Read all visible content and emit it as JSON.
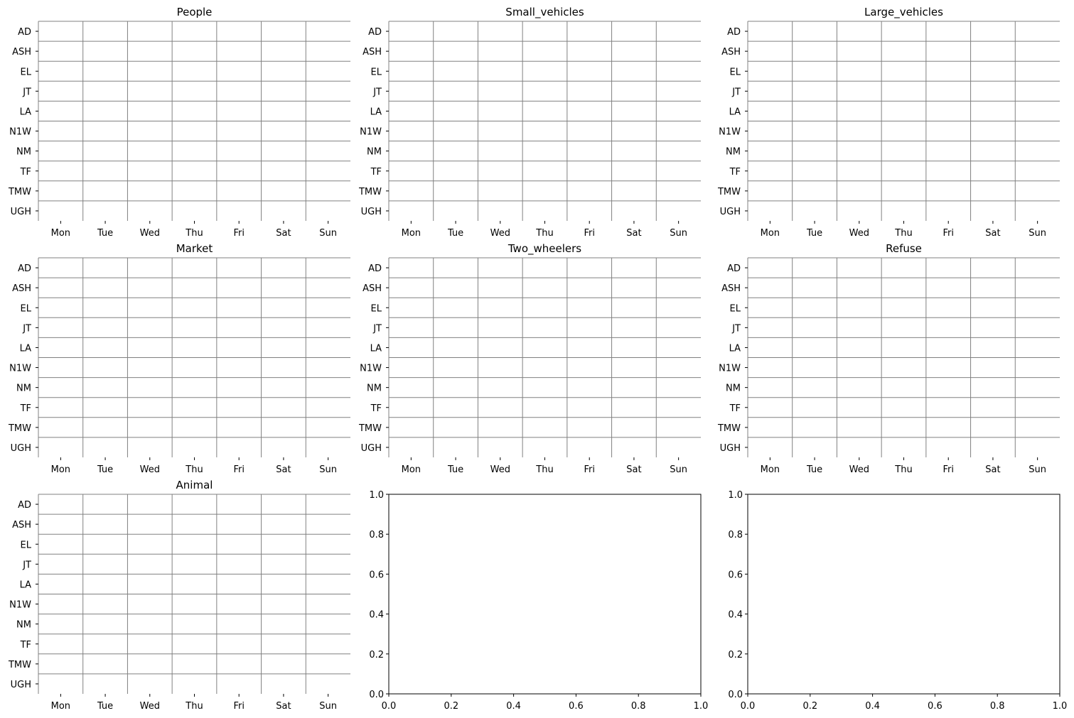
{
  "chart_data": [
    {
      "type": "heatmap",
      "title": "People",
      "x_categories": [
        "Mon",
        "Tue",
        "Wed",
        "Thu",
        "Fri",
        "Sat",
        "Sun"
      ],
      "y_categories": [
        "AD",
        "ASH",
        "EL",
        "JT",
        "LA",
        "N1W",
        "NM",
        "TF",
        "TMW",
        "UGH"
      ],
      "values": [],
      "grid": true
    },
    {
      "type": "heatmap",
      "title": "Small_vehicles",
      "x_categories": [
        "Mon",
        "Tue",
        "Wed",
        "Thu",
        "Fri",
        "Sat",
        "Sun"
      ],
      "y_categories": [
        "AD",
        "ASH",
        "EL",
        "JT",
        "LA",
        "N1W",
        "NM",
        "TF",
        "TMW",
        "UGH"
      ],
      "values": [],
      "grid": true
    },
    {
      "type": "heatmap",
      "title": "Large_vehicles",
      "x_categories": [
        "Mon",
        "Tue",
        "Wed",
        "Thu",
        "Fri",
        "Sat",
        "Sun"
      ],
      "y_categories": [
        "AD",
        "ASH",
        "EL",
        "JT",
        "LA",
        "N1W",
        "NM",
        "TF",
        "TMW",
        "UGH"
      ],
      "values": [],
      "grid": true
    },
    {
      "type": "heatmap",
      "title": "Market",
      "x_categories": [
        "Mon",
        "Tue",
        "Wed",
        "Thu",
        "Fri",
        "Sat",
        "Sun"
      ],
      "y_categories": [
        "AD",
        "ASH",
        "EL",
        "JT",
        "LA",
        "N1W",
        "NM",
        "TF",
        "TMW",
        "UGH"
      ],
      "values": [],
      "grid": true
    },
    {
      "type": "heatmap",
      "title": "Two_wheelers",
      "x_categories": [
        "Mon",
        "Tue",
        "Wed",
        "Thu",
        "Fri",
        "Sat",
        "Sun"
      ],
      "y_categories": [
        "AD",
        "ASH",
        "EL",
        "JT",
        "LA",
        "N1W",
        "NM",
        "TF",
        "TMW",
        "UGH"
      ],
      "values": [],
      "grid": true
    },
    {
      "type": "heatmap",
      "title": "Refuse",
      "x_categories": [
        "Mon",
        "Tue",
        "Wed",
        "Thu",
        "Fri",
        "Sat",
        "Sun"
      ],
      "y_categories": [
        "AD",
        "ASH",
        "EL",
        "JT",
        "LA",
        "N1W",
        "NM",
        "TF",
        "TMW",
        "UGH"
      ],
      "values": [],
      "grid": true
    },
    {
      "type": "heatmap",
      "title": "Animal",
      "x_categories": [
        "Mon",
        "Tue",
        "Wed",
        "Thu",
        "Fri",
        "Sat",
        "Sun"
      ],
      "y_categories": [
        "AD",
        "ASH",
        "EL",
        "JT",
        "LA",
        "N1W",
        "NM",
        "TF",
        "TMW",
        "UGH"
      ],
      "values": [],
      "grid": true
    },
    {
      "type": "scatter",
      "title": "",
      "series": [],
      "xlim": [
        0,
        1
      ],
      "ylim": [
        0,
        1
      ],
      "x_ticks": [
        "0.0",
        "0.2",
        "0.4",
        "0.6",
        "0.8",
        "1.0"
      ],
      "y_ticks": [
        "0.0",
        "0.2",
        "0.4",
        "0.6",
        "0.8",
        "1.0"
      ]
    },
    {
      "type": "scatter",
      "title": "",
      "series": [],
      "xlim": [
        0,
        1
      ],
      "ylim": [
        0,
        1
      ],
      "x_ticks": [
        "0.0",
        "0.2",
        "0.4",
        "0.6",
        "0.8",
        "1.0"
      ],
      "y_ticks": [
        "0.0",
        "0.2",
        "0.4",
        "0.6",
        "0.8",
        "1.0"
      ]
    }
  ],
  "colors": {
    "grid_line": "#808080",
    "axis_line": "#000000",
    "text": "#000000"
  }
}
